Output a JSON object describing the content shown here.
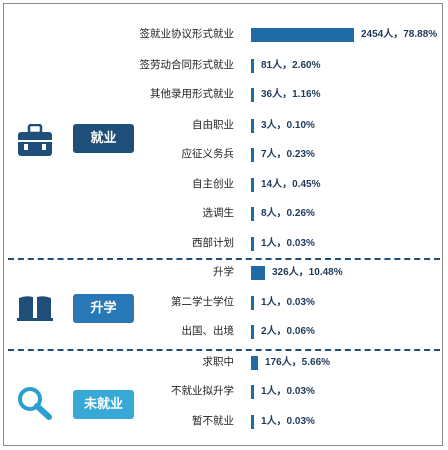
{
  "sections": [
    {
      "key": "employment",
      "label": "就业",
      "color": "#1f4e79",
      "icon": "briefcase-icon"
    },
    {
      "key": "further-study",
      "label": "升学",
      "color": "#2778b5",
      "icon": "open-book-icon"
    },
    {
      "key": "unemployed",
      "label": "未就业",
      "color": "#36a9d6",
      "icon": "magnifier-icon"
    }
  ],
  "chart_data": {
    "type": "bar",
    "orientation": "horizontal",
    "title": "",
    "xlabel": "",
    "ylabel": "",
    "grid": false,
    "legend": "none",
    "unit": "人",
    "series": [
      {
        "values": [
          2454,
          81,
          36,
          3,
          7,
          14,
          8,
          1,
          326,
          1,
          2,
          176,
          1,
          1
        ],
        "percents": [
          78.88,
          2.6,
          1.16,
          0.1,
          0.23,
          0.45,
          0.26,
          0.03,
          10.48,
          0.03,
          0.06,
          5.66,
          0.03,
          0.03
        ]
      }
    ],
    "categories": [
      "签就业协议形式就业",
      "签劳动合同形式就业",
      "其他录用形式就业",
      "自由职业",
      "应征义务兵",
      "自主创业",
      "选调生",
      "西部计划",
      "升学",
      "第二学士学位",
      "出国、出境",
      "求职中",
      "不就业拟升学",
      "暂不就业"
    ],
    "category_group": [
      "employment",
      "employment",
      "employment",
      "employment",
      "employment",
      "employment",
      "employment",
      "employment",
      "further-study",
      "further-study",
      "further-study",
      "unemployed",
      "unemployed",
      "unemployed"
    ],
    "value_labels": [
      "2454人，78.88%",
      "81人，2.60%",
      "36人，1.16%",
      "3人，0.10%",
      "7人，0.23%",
      "14人，0.45%",
      "8人，0.26%",
      "1人，0.03%",
      "326人，10.48%",
      "1人，0.03%",
      "2人，0.06%",
      "176人，5.66%",
      "1人，0.03%",
      "1人，0.03%"
    ],
    "bar_color": "#1f6ba5"
  }
}
